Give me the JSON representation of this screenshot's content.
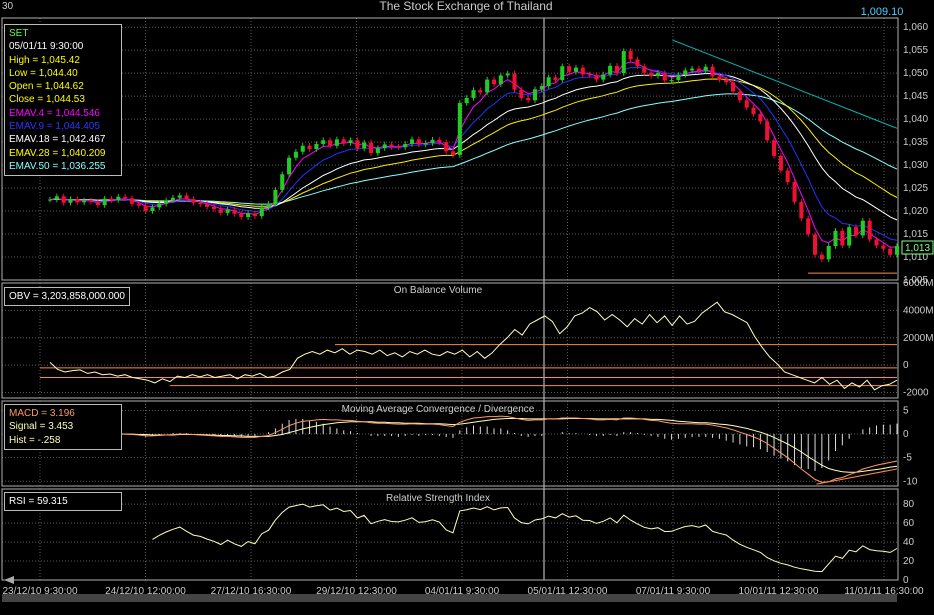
{
  "window": {
    "corner_label": "30",
    "title": "The Stock Exchange of Thailand",
    "top_right_value": "1,009.10"
  },
  "info_box": {
    "symbol": "SET",
    "datetime": "05/01/11 9:30:00",
    "high": "High  = 1,045.42",
    "low": "Low   = 1,044.40",
    "open": "Open  = 1,044.62",
    "close": "Close = 1,044.53",
    "emav4": "EMAV.4 = 1,044.546",
    "emav9": "EMAV.9 = 1,044.405",
    "emav18": "EMAV.18 = 1,042.467",
    "emav28": "EMAV.28 = 1,040.209",
    "emav50": "EMAV.50 = 1,036.255"
  },
  "colors": {
    "background": "#000000",
    "grid": "#5a5a5a",
    "frame": "#b0b0b0",
    "candle_up": "#22cc22",
    "candle_down": "#ee1133",
    "emav4": "#ff00ff",
    "emav9": "#2233ff",
    "emav18": "#ffffff",
    "emav28": "#ffee00",
    "emav50": "#88ffff",
    "trendline": "#00bbbb",
    "support": "#ff8844",
    "indicator": "#ffffbb",
    "hist": "#dddddd",
    "signal_line": "#ff9966",
    "current_price_box": "#7fff7f"
  },
  "chart_data": [
    {
      "type": "candlestick",
      "title": "The Stock Exchange of Thailand",
      "ylim": [
        1005,
        1062
      ],
      "yticks": [
        "1,060",
        "1,055",
        "1,050",
        "1,045",
        "1,040",
        "1,035",
        "1,030",
        "1,025",
        "1,020",
        "1,015",
        "1,010",
        "1,005"
      ],
      "ytick_values": [
        1060,
        1055,
        1050,
        1045,
        1040,
        1035,
        1030,
        1025,
        1020,
        1015,
        1010,
        1005
      ],
      "current_price": "1,013",
      "current_value": 1013,
      "x_labels": [
        "23/12/10 9:30:00",
        "24/12/10 12:00:00",
        "27/12/10 16:30:00",
        "29/12/10 12:30:00",
        "04/01/11 9:30:00",
        "05/01/11 12:30:00",
        "07/01/11 9:30:00",
        "10/01/11 12:30:00",
        "11/01/11 16:30:00"
      ],
      "close_series": [
        1022.5,
        1023.2,
        1021.8,
        1022.6,
        1021.9,
        1022.3,
        1022.0,
        1021.3,
        1022.7,
        1022.4,
        1023.1,
        1022.8,
        1021.6,
        1021.2,
        1020.0,
        1020.8,
        1021.6,
        1022.3,
        1022.9,
        1023.4,
        1022.6,
        1021.8,
        1021.5,
        1020.9,
        1020.4,
        1019.6,
        1020.3,
        1019.4,
        1018.7,
        1019.5,
        1018.9,
        1020.8,
        1021.6,
        1024.6,
        1028.0,
        1031.6,
        1032.9,
        1034.2,
        1033.5,
        1034.6,
        1035.4,
        1034.2,
        1035.6,
        1034.8,
        1035.4,
        1033.6,
        1034.9,
        1032.6,
        1033.7,
        1034.5,
        1034.0,
        1033.9,
        1034.6,
        1035.6,
        1034.5,
        1034.8,
        1035.5,
        1035.0,
        1033.0,
        1032.2,
        1043.5,
        1044.6,
        1046.3,
        1045.8,
        1048.6,
        1047.6,
        1049.5,
        1049.9,
        1046.4,
        1044.6,
        1044.1,
        1046.5,
        1047.2,
        1049.1,
        1048.5,
        1051.5,
        1050.3,
        1051.2,
        1049.7,
        1049.6,
        1048.6,
        1049.7,
        1051.6,
        1050.0,
        1054.8,
        1053.0,
        1051.5,
        1050.1,
        1049.4,
        1050.0,
        1048.4,
        1048.5,
        1049.6,
        1050.6,
        1051.0,
        1050.5,
        1051.4,
        1049.3,
        1048.6,
        1048.0,
        1046.0,
        1044.1,
        1042.5,
        1041.1,
        1039.5,
        1035.4,
        1032.0,
        1028.8,
        1026.3,
        1022.0,
        1018.4,
        1014.9,
        1010.5,
        1009.5,
        1012.4,
        1015.7,
        1012.5,
        1016.5,
        1014.7,
        1017.9,
        1013.8,
        1012.5,
        1011.8,
        1010.5,
        1012.4
      ],
      "series": [
        {
          "name": "EMAV.4",
          "color": "#ff00ff",
          "last": 1044.546
        },
        {
          "name": "EMAV.9",
          "color": "#2233ff",
          "last": 1044.405
        },
        {
          "name": "EMAV.18",
          "color": "#ffffff",
          "last": 1042.467
        },
        {
          "name": "EMAV.28",
          "color": "#ffee00",
          "last": 1040.209
        },
        {
          "name": "EMAV.50",
          "color": "#88ffff",
          "last": 1036.255
        }
      ],
      "trendline": [
        [
          0.735,
          1057.2
        ],
        [
          1.0,
          1038.0
        ]
      ],
      "support_line": [
        [
          0.895,
          1006.5
        ],
        [
          1.0,
          1006.5
        ]
      ]
    },
    {
      "type": "line",
      "title": "On Balance Volume",
      "readout": "OBV = 3,203,858,000.000",
      "ylim": [
        -2400,
        6000
      ],
      "yticks": [
        "6000M",
        "4000M",
        "2000M",
        "0",
        "-2000"
      ],
      "ytick_values": [
        6000,
        4000,
        2000,
        0,
        -2000
      ],
      "values": [
        200,
        -300,
        -500,
        -400,
        -350,
        -600,
        -500,
        -700,
        -650,
        -800,
        -700,
        -900,
        -1000,
        -1100,
        -1300,
        -1000,
        -1200,
        -800,
        -900,
        -700,
        -850,
        -700,
        -900,
        -800,
        -700,
        -1000,
        -700,
        -800,
        -600,
        -900,
        -800,
        -500,
        -300,
        500,
        800,
        1000,
        800,
        1100,
        900,
        1200,
        800,
        1100,
        1000,
        800,
        1100,
        700,
        900,
        600,
        1000,
        800,
        1100,
        800,
        700,
        1000,
        800,
        1100,
        600,
        1000,
        500,
        900,
        1500,
        2000,
        2600,
        2200,
        3000,
        3300,
        3600,
        3200,
        2300,
        2800,
        3600,
        3800,
        4200,
        3900,
        3300,
        3700,
        3300,
        2800,
        3400,
        3000,
        3700,
        3100,
        3600,
        2900,
        3600,
        3000,
        3200,
        3800,
        4200,
        4600,
        3900,
        3700,
        3400,
        3100,
        2100,
        1300,
        600,
        100,
        -500,
        -700,
        -900,
        -1100,
        -1300,
        -900,
        -1400,
        -1100,
        -1700,
        -1300,
        -1600,
        -1100,
        -1800,
        -1500,
        -1400,
        -1100
      ],
      "hlines": [
        1500,
        -200,
        -900,
        -1500
      ]
    },
    {
      "type": "line",
      "title": "Moving Average Convergence / Divergence",
      "readouts": [
        "MACD = 3.196",
        "Signal = 3.453",
        "Hist = -.258"
      ],
      "ylim": [
        -11,
        7
      ],
      "yticks": [
        "5",
        "0",
        "-5",
        "-10"
      ],
      "ytick_values": [
        5,
        0,
        -5,
        -10
      ],
      "macd": [
        0.2,
        0.3,
        0.2,
        0.1,
        0.0,
        0.0,
        -0.1,
        -0.2,
        -0.1,
        0.0,
        0.1,
        0.0,
        -0.1,
        -0.2,
        -0.4,
        -0.4,
        -0.3,
        -0.2,
        -0.1,
        0.0,
        0.0,
        -0.1,
        -0.2,
        -0.3,
        -0.4,
        -0.5,
        -0.5,
        -0.6,
        -0.7,
        -0.7,
        -0.7,
        -0.5,
        -0.3,
        0.3,
        1.0,
        1.8,
        2.3,
        2.7,
        2.8,
        3.0,
        3.1,
        3.0,
        3.0,
        2.9,
        2.9,
        2.7,
        2.6,
        2.4,
        2.3,
        2.3,
        2.2,
        2.1,
        2.1,
        2.2,
        2.1,
        2.1,
        2.1,
        2.0,
        1.8,
        1.6,
        2.5,
        3.0,
        3.4,
        3.5,
        3.7,
        3.7,
        3.8,
        3.7,
        3.4,
        3.1,
        2.9,
        3.0,
        3.0,
        3.2,
        3.2,
        3.4,
        3.4,
        3.4,
        3.3,
        3.2,
        3.0,
        3.0,
        3.1,
        3.0,
        3.4,
        3.4,
        3.3,
        3.1,
        2.9,
        2.8,
        2.5,
        2.3,
        2.2,
        2.2,
        2.2,
        2.1,
        2.1,
        1.9,
        1.6,
        1.3,
        0.9,
        0.4,
        -0.1,
        -0.6,
        -1.2,
        -2.0,
        -3.0,
        -4.0,
        -5.0,
        -6.2,
        -7.4,
        -8.5,
        -9.6,
        -10.2,
        -10.1,
        -9.5,
        -9.2,
        -8.6,
        -8.1,
        -7.4,
        -7.0,
        -6.6,
        -6.3,
        -6.0,
        -5.7
      ],
      "signal": [
        0.2,
        0.2,
        0.2,
        0.2,
        0.1,
        0.1,
        0.1,
        0.0,
        0.0,
        0.0,
        0.0,
        0.0,
        0.0,
        -0.1,
        -0.1,
        -0.2,
        -0.2,
        -0.2,
        -0.2,
        -0.1,
        -0.1,
        -0.1,
        -0.1,
        -0.2,
        -0.2,
        -0.3,
        -0.3,
        -0.4,
        -0.4,
        -0.5,
        -0.5,
        -0.5,
        -0.5,
        -0.3,
        -0.1,
        0.3,
        0.7,
        1.1,
        1.4,
        1.7,
        2.0,
        2.2,
        2.4,
        2.5,
        2.6,
        2.6,
        2.6,
        2.6,
        2.5,
        2.5,
        2.4,
        2.4,
        2.3,
        2.3,
        2.3,
        2.2,
        2.2,
        2.2,
        2.1,
        2.0,
        2.1,
        2.3,
        2.5,
        2.7,
        2.9,
        3.1,
        3.2,
        3.3,
        3.3,
        3.3,
        3.2,
        3.2,
        3.2,
        3.2,
        3.2,
        3.2,
        3.3,
        3.3,
        3.3,
        3.3,
        3.2,
        3.2,
        3.2,
        3.2,
        3.2,
        3.2,
        3.2,
        3.2,
        3.1,
        3.1,
        3.0,
        2.9,
        2.7,
        2.6,
        2.5,
        2.4,
        2.4,
        2.3,
        2.1,
        2.0,
        1.8,
        1.5,
        1.2,
        0.8,
        0.4,
        -0.1,
        -0.7,
        -1.4,
        -2.1,
        -2.9,
        -3.8,
        -4.8,
        -5.7,
        -6.6,
        -7.3,
        -7.7,
        -8.0,
        -8.1,
        -8.1,
        -7.9,
        -7.7,
        -7.5,
        -7.3,
        -7.0,
        -6.8
      ],
      "support_line": [
        [
          0.905,
          -10.6
        ],
        [
          1.0,
          -7.4
        ]
      ]
    },
    {
      "type": "line",
      "title": "Relative Strength Index",
      "readout": "RSI = 59.315",
      "ylim": [
        0,
        96
      ],
      "yticks": [
        "80",
        "60",
        "40",
        "20",
        "0"
      ],
      "ytick_values": [
        80,
        60,
        40,
        20,
        0
      ],
      "values": [
        null,
        null,
        null,
        null,
        null,
        null,
        null,
        null,
        null,
        null,
        null,
        null,
        null,
        null,
        null,
        null,
        null,
        null,
        null,
        null,
        null,
        null,
        null,
        null,
        null,
        null,
        null,
        null,
        null,
        null,
        null,
        null,
        null,
        null,
        null,
        null,
        null,
        null,
        null,
        null,
        null,
        null,
        null,
        null,
        null,
        null,
        null,
        null,
        null,
        null,
        null,
        null,
        null,
        null,
        null,
        null,
        null,
        null,
        null,
        null,
        null,
        null,
        null,
        null,
        null,
        null,
        null,
        null,
        null,
        null,
        null,
        null,
        null,
        null,
        null,
        null,
        null,
        null,
        null,
        null,
        null,
        null,
        null,
        null,
        null,
        null,
        null,
        null,
        null,
        null,
        null,
        null,
        null,
        null,
        null,
        null,
        null,
        null,
        null,
        null,
        null,
        null,
        null,
        null,
        null,
        null,
        null,
        null,
        null,
        null,
        null,
        null,
        null,
        null,
        null,
        null,
        null,
        null,
        null,
        null,
        null,
        null,
        null,
        null,
        null,
        null
      ]
    }
  ]
}
